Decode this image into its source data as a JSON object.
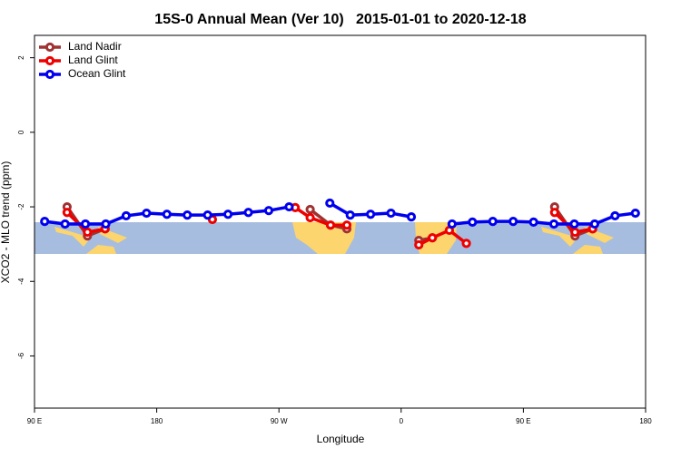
{
  "chart_data": {
    "type": "line",
    "title": "15S-0 Annual Mean (Ver 10)   2015-01-01 to 2020-12-18",
    "x_label": "Longitude",
    "y_label": "XCO2 - MLO trend (ppm)",
    "xlim": [
      90,
      540
    ],
    "ylim": [
      -7.4,
      2.6
    ],
    "xticks": [
      {
        "value": 90,
        "label": "90 E"
      },
      180,
      {
        "value": 270,
        "label": "90 W"
      },
      {
        "value": 360,
        "label": "0"
      },
      {
        "value": 450,
        "label": "90 E"
      },
      {
        "value": 540,
        "label": "180"
      }
    ],
    "yticks": [
      2,
      0,
      -2,
      -4,
      -6
    ],
    "legend": "top-left",
    "series": [
      {
        "name": "Land Nadir",
        "color": "#a03232",
        "x": [
          114,
          129,
          142,
          null,
          293,
          308,
          320,
          null,
          373,
          383,
          null,
          473,
          488,
          501
        ],
        "values": [
          -2.0,
          -2.78,
          -2.59,
          null,
          -2.07,
          -2.49,
          -2.59,
          null,
          -2.9,
          -2.83,
          null,
          -2.0,
          -2.78,
          -2.59
        ]
      },
      {
        "name": "Land Glint",
        "color": "#ee0000",
        "x": [
          114,
          129,
          142,
          null,
          221,
          null,
          282,
          293,
          308,
          320,
          null,
          373,
          383,
          395.5,
          408,
          null,
          473,
          488,
          501
        ],
        "values": [
          -2.15,
          -2.68,
          -2.59,
          null,
          -2.34,
          null,
          -2.02,
          -2.29,
          -2.49,
          -2.49,
          null,
          -3.02,
          -2.83,
          -2.63,
          -2.98,
          null,
          -2.15,
          -2.68,
          -2.59
        ]
      },
      {
        "name": "Ocean Glint",
        "color": "#0000ee",
        "x": [
          97.5,
          112.5,
          127.5,
          142.5,
          157.5,
          172.5,
          187.5,
          202.5,
          217.5,
          232.5,
          247.5,
          262.5,
          277.5,
          292.5,
          307.5,
          322.5,
          337.5,
          352.5,
          367.5,
          382.5,
          397.5,
          412.5,
          427.5,
          442.5,
          457.5,
          472.5,
          487.5,
          502.5,
          517.5,
          532.5
        ],
        "values": [
          -2.39,
          -2.46,
          -2.46,
          -2.46,
          -2.24,
          -2.17,
          -2.2,
          -2.22,
          -2.22,
          -2.2,
          -2.15,
          -2.1,
          -2.0,
          null,
          -1.9,
          -2.22,
          -2.2,
          -2.17,
          -2.27,
          null,
          -2.46,
          -2.41,
          -2.39,
          -2.39,
          -2.41,
          -2.46,
          -2.46,
          -2.46,
          -2.24,
          -2.17
        ]
      }
    ]
  }
}
